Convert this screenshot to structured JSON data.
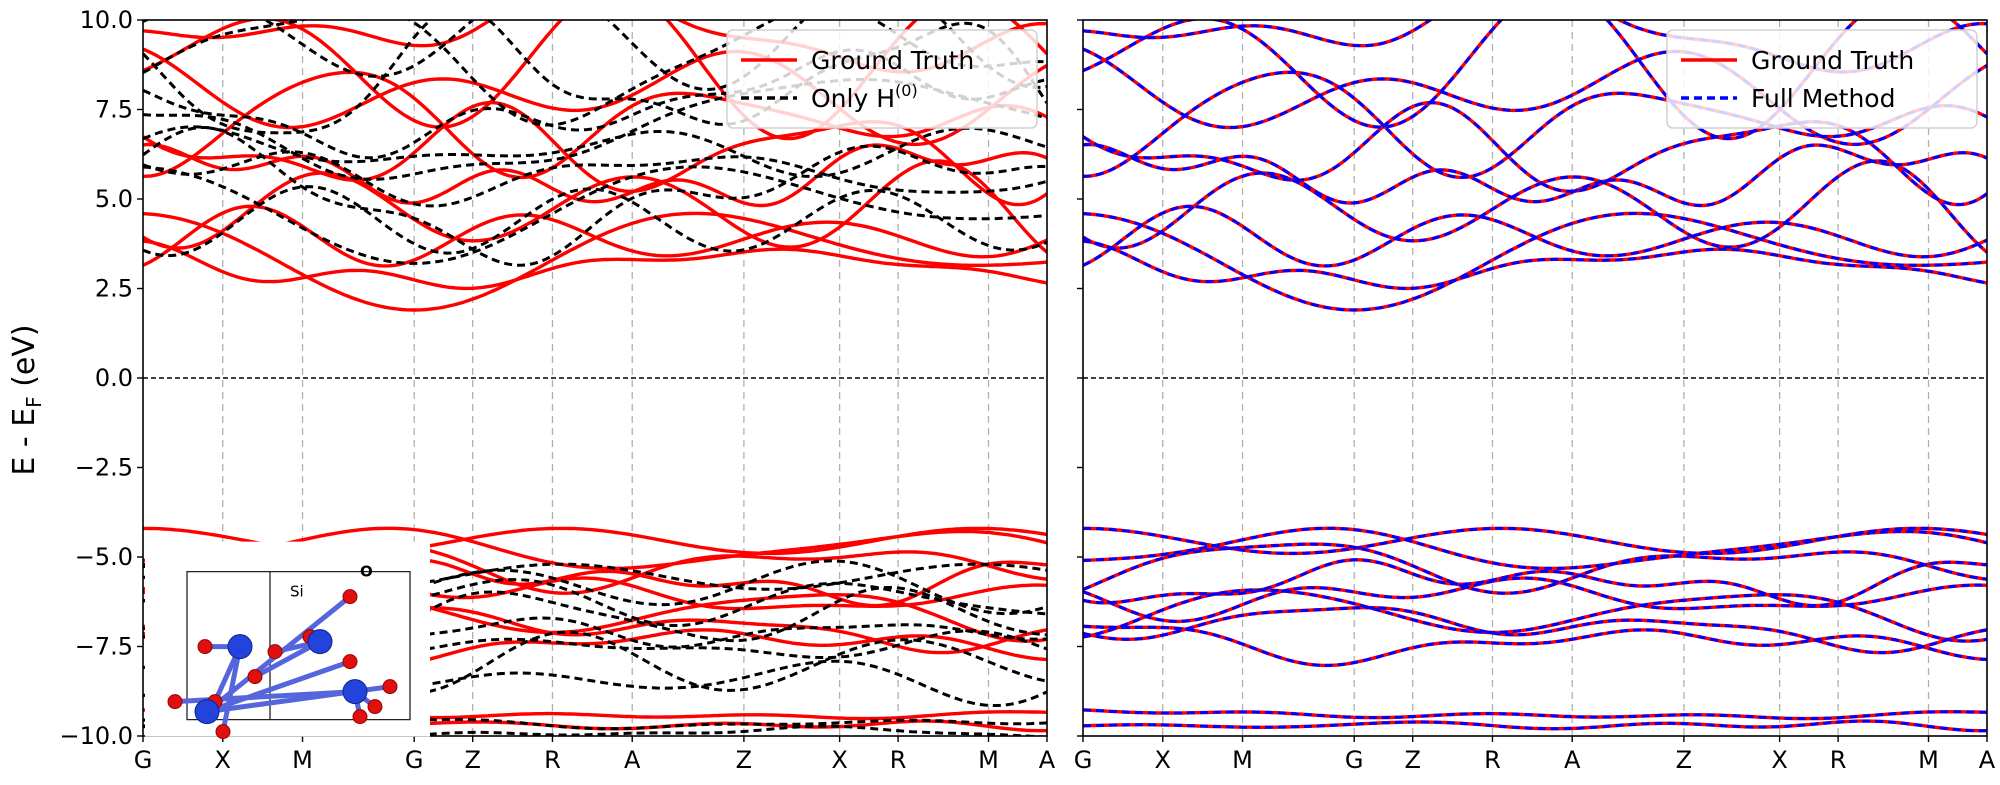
{
  "figure": {
    "ylabel_main": "E - E",
    "ylabel_sub": "F",
    "ylabel_unit": " (eV)"
  },
  "chart_data": [
    {
      "type": "line",
      "panel": "left",
      "x_kpoints": [
        "G",
        "X",
        "M",
        "G",
        "Z",
        "R",
        "A",
        "Z",
        "X",
        "R",
        "M",
        "A"
      ],
      "x_kpoint_positions": [
        0,
        0.75,
        1.5,
        2.55,
        3.1,
        3.85,
        4.6,
        5.65,
        6.55,
        7.1,
        7.95,
        8.5
      ],
      "ylim": [
        -10,
        10
      ],
      "yticks": [
        -10.0,
        -7.5,
        -5.0,
        -2.5,
        0.0,
        2.5,
        5.0,
        7.5,
        10.0
      ],
      "ytick_labels": [
        "−10.0",
        "−7.5",
        "−5.0",
        "−2.5",
        "0.0",
        "2.5",
        "5.0",
        "7.5",
        "10.0"
      ],
      "fermi_level": 0.0,
      "grid": "vertical dashed at k-points",
      "legend_position": "top-right",
      "series": [
        {
          "name": "Ground Truth",
          "style": "solid",
          "color": "#ff0000",
          "band_edges": {
            "conduction_min": 1.9,
            "valence_max": -4.2,
            "low_band": -9.5
          }
        },
        {
          "name": "Only H",
          "name_superscript": "(0)",
          "style": "dashed",
          "color": "#000000",
          "band_edges": {
            "conduction_min": 3.2,
            "valence_max": -5.2,
            "low_band": -9.7
          }
        }
      ],
      "inset": {
        "labels": [
          "Si",
          "O"
        ],
        "type": "crystal-structure"
      }
    },
    {
      "type": "line",
      "panel": "right",
      "x_kpoints": [
        "G",
        "X",
        "M",
        "G",
        "Z",
        "R",
        "A",
        "Z",
        "X",
        "R",
        "M",
        "A"
      ],
      "x_kpoint_positions": [
        0,
        0.75,
        1.5,
        2.55,
        3.1,
        3.85,
        4.6,
        5.65,
        6.55,
        7.1,
        7.95,
        8.5
      ],
      "ylim": [
        -10,
        10
      ],
      "fermi_level": 0.0,
      "grid": "vertical dashed at k-points",
      "legend_position": "top-right",
      "series": [
        {
          "name": "Ground Truth",
          "style": "solid",
          "color": "#ff0000",
          "band_edges": {
            "conduction_min": 1.9,
            "valence_max": -4.2,
            "low_band": -9.5
          }
        },
        {
          "name": "Full Method",
          "style": "dashed",
          "color": "#0000ff",
          "band_edges": {
            "conduction_min": 1.9,
            "valence_max": -4.2,
            "low_band": -9.5
          }
        }
      ]
    }
  ]
}
